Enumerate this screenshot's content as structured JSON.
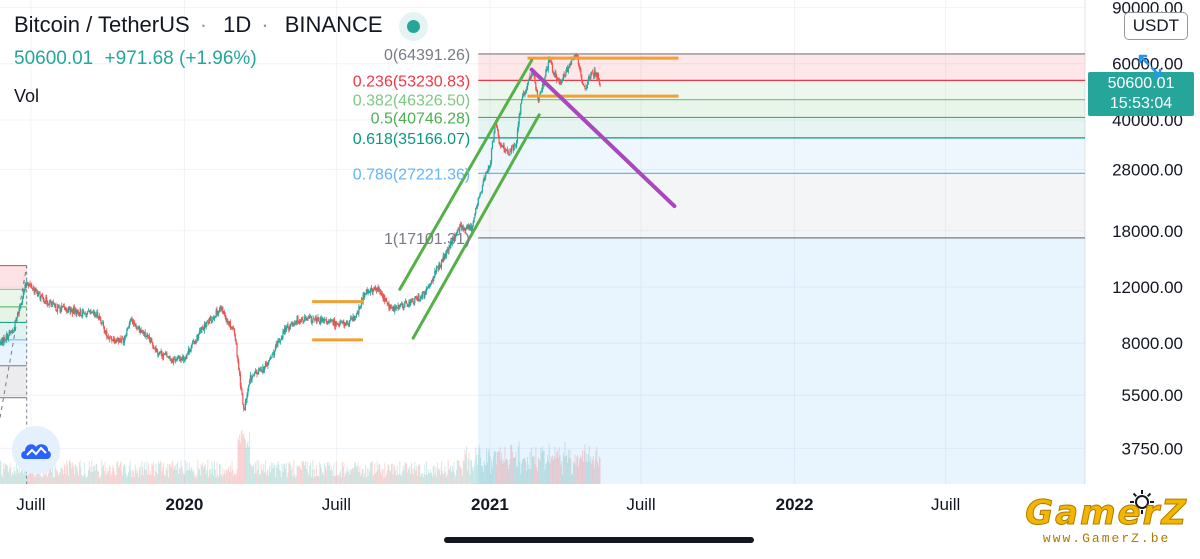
{
  "header": {
    "symbol": "Bitcoin / TetherUS",
    "interval": "1D",
    "exchange": "BINANCE",
    "dot_separator": "·",
    "last_price": "50600.01",
    "change": "+971.68",
    "change_percent": "(+1.96%)",
    "volume_label": "Vol",
    "currency": "USDT",
    "status_icon": "market-open-dot-icon",
    "colors": {
      "up": "#26a69a",
      "text": "#131722"
    }
  },
  "price_badge": {
    "price": "50600.01",
    "countdown": "15:53:04",
    "color": "#26a69a"
  },
  "controls": {
    "expand_icon": "expand-arrows-icon",
    "settings_icon": "gear-icon",
    "logo_icon": "tradingview-cloud-logo-icon"
  },
  "watermark": {
    "main": "GamerZ",
    "sub": "www.GamerZ.be"
  },
  "chart_data": {
    "type": "candlestick",
    "scale": "log",
    "ylim": [
      2900,
      95000
    ],
    "xlim": [
      "2019-05-25",
      "2022-12-15"
    ],
    "y_ticks": [
      "90000.00",
      "60000.00",
      "40000.00",
      "28000.00",
      "18000.00",
      "12000.00",
      "8000.00",
      "5500.00",
      "3750.00"
    ],
    "y_tick_values": [
      90000,
      60000,
      40000,
      28000,
      18000,
      12000,
      8000,
      5500,
      3750
    ],
    "x_ticks": [
      {
        "label": "Juill",
        "date": "2019-07-01",
        "bold": false
      },
      {
        "label": "2020",
        "date": "2020-01-01",
        "bold": true
      },
      {
        "label": "Juill",
        "date": "2020-07-01",
        "bold": false
      },
      {
        "label": "2021",
        "date": "2021-01-01",
        "bold": true
      },
      {
        "label": "Juill",
        "date": "2021-07-01",
        "bold": false
      },
      {
        "label": "2022",
        "date": "2022-01-01",
        "bold": true
      },
      {
        "label": "Juill",
        "date": "2022-07-01",
        "bold": false
      }
    ],
    "price_path": [
      [
        "2019-05-25",
        8000
      ],
      [
        "2019-06-10",
        8800
      ],
      [
        "2019-06-26",
        12500
      ],
      [
        "2019-07-12",
        11200
      ],
      [
        "2019-08-01",
        10300
      ],
      [
        "2019-08-15",
        10200
      ],
      [
        "2019-09-01",
        9900
      ],
      [
        "2019-09-20",
        9800
      ],
      [
        "2019-10-01",
        8300
      ],
      [
        "2019-10-20",
        8200
      ],
      [
        "2019-10-28",
        9500
      ],
      [
        "2019-11-15",
        8500
      ],
      [
        "2019-12-01",
        7500
      ],
      [
        "2019-12-18",
        7100
      ],
      [
        "2020-01-01",
        7200
      ],
      [
        "2020-01-20",
        8700
      ],
      [
        "2020-02-13",
        10300
      ],
      [
        "2020-03-01",
        8700
      ],
      [
        "2020-03-12",
        4900
      ],
      [
        "2020-03-20",
        6200
      ],
      [
        "2020-04-10",
        6900
      ],
      [
        "2020-04-30",
        8800
      ],
      [
        "2020-05-15",
        9500
      ],
      [
        "2020-06-01",
        9500
      ],
      [
        "2020-06-20",
        9300
      ],
      [
        "2020-07-15",
        9200
      ],
      [
        "2020-07-25",
        9700
      ],
      [
        "2020-08-05",
        11700
      ],
      [
        "2020-08-20",
        11800
      ],
      [
        "2020-09-05",
        10200
      ],
      [
        "2020-09-30",
        10800
      ],
      [
        "2020-10-15",
        11400
      ],
      [
        "2020-10-25",
        13000
      ],
      [
        "2020-11-10",
        15300
      ],
      [
        "2020-11-25",
        18500
      ],
      [
        "2020-12-10",
        18300
      ],
      [
        "2020-12-20",
        23500
      ],
      [
        "2021-01-01",
        29000
      ],
      [
        "2021-01-08",
        40500
      ],
      [
        "2021-01-12",
        34000
      ],
      [
        "2021-01-22",
        31500
      ],
      [
        "2021-02-01",
        33500
      ],
      [
        "2021-02-08",
        46300
      ],
      [
        "2021-02-21",
        57500
      ],
      [
        "2021-02-28",
        45200
      ],
      [
        "2021-03-13",
        61000
      ],
      [
        "2021-03-25",
        52000
      ],
      [
        "2021-04-14",
        64391
      ],
      [
        "2021-04-25",
        49000
      ],
      [
        "2021-05-03",
        57000
      ],
      [
        "2021-05-10",
        55000
      ],
      [
        "2021-05-13",
        50600
      ]
    ],
    "annotations": {
      "fibonacci": {
        "start_date": "2020-12-18",
        "end_date": "2022-12-15",
        "levels": [
          {
            "ratio": "0",
            "price": 64391.26,
            "label": "0(64391.26)",
            "color": "#787b86"
          },
          {
            "ratio": "0.236",
            "price": 53230.83,
            "label": "0.236(53230.83)",
            "color": "#f23645"
          },
          {
            "ratio": "0.382",
            "price": 46326.5,
            "label": "0.382(46326.50)",
            "color": "#81c784"
          },
          {
            "ratio": "0.5",
            "price": 40746.28,
            "label": "0.5(40746.28)",
            "color": "#4caf50"
          },
          {
            "ratio": "0.618",
            "price": 35166.07,
            "label": "0.618(35166.07)",
            "color": "#089981"
          },
          {
            "ratio": "0.786",
            "price": 27221.36,
            "label": "0.786(27221.36)",
            "color": "#64b5f6"
          },
          {
            "ratio": "1",
            "price": 17101.31,
            "label": "1(17101.31)",
            "color": "#787b86"
          }
        ]
      },
      "left_fib_levels": [
        14000,
        11800,
        10400,
        9300,
        8200,
        6800,
        5400
      ],
      "range_boxes": [
        {
          "from": "2020-06-02",
          "to": "2020-08-02",
          "top": 10800,
          "bottom": 8200,
          "color": "#f2a033"
        },
        {
          "from": "2021-02-15",
          "to": "2021-08-15",
          "top": 62500,
          "bottom": 47500,
          "color": "#f2a033"
        }
      ],
      "channel_lines": [
        {
          "from": [
            "2020-09-15",
            11800
          ],
          "to": [
            "2021-02-20",
            61500
          ],
          "color": "#55b147"
        },
        {
          "from": [
            "2020-10-01",
            8300
          ],
          "to": [
            "2021-03-01",
            41500
          ],
          "color": "#55b147"
        }
      ],
      "trend_line": {
        "from": [
          "2021-02-20",
          57500
        ],
        "to": [
          "2021-08-10",
          21500
        ],
        "color": "#ab47bc"
      }
    }
  }
}
